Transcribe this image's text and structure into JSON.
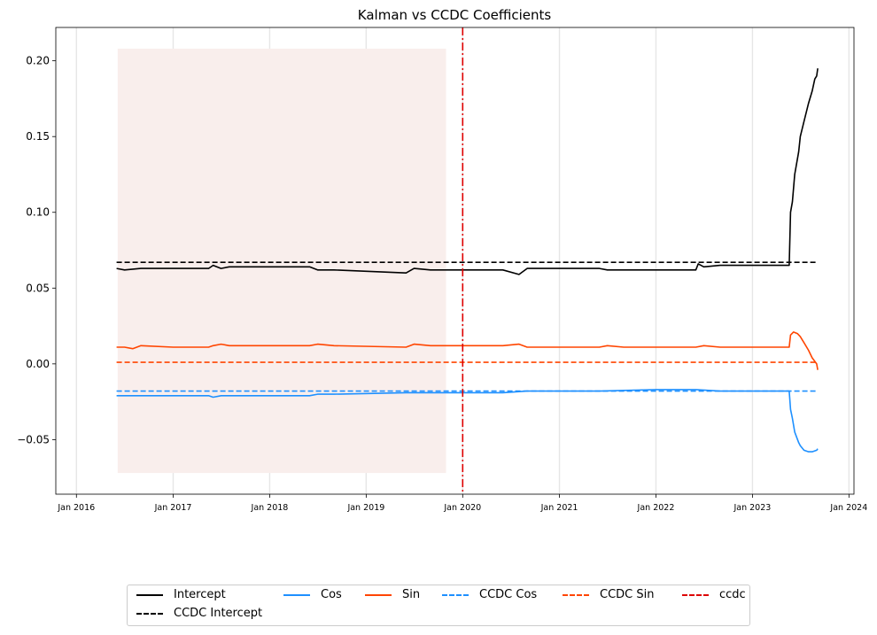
{
  "chart_data": {
    "type": "line",
    "title": "Kalman vs CCDC Coefficients",
    "xlabel": "",
    "ylabel": "",
    "x_ticks": [
      "Jan 2016",
      "Jan 2017",
      "Jan 2018",
      "Jan 2019",
      "Jan 2020",
      "Jan 2021",
      "Jan 2022",
      "Jan 2023",
      "Jan 2024"
    ],
    "y_ticks": [
      "−0.05",
      "0.00",
      "0.05",
      "0.10",
      "0.15",
      "0.20"
    ],
    "xlim": [
      "2015-10-15",
      "2024-01-20"
    ],
    "ylim": [
      -0.086,
      0.222
    ],
    "grid": "vertical",
    "legend_position": "bottom",
    "shaded_region": {
      "x": [
        "2016-06-05",
        "2019-10-30"
      ],
      "y": [
        -0.072,
        0.208
      ],
      "color": "#f9eeec"
    },
    "vertical_line": {
      "name": "ccdc",
      "x": "2020-01-01",
      "color": "#dd0000",
      "style": "dashdot"
    },
    "series": [
      {
        "name": "Intercept",
        "color": "#000000",
        "style": "solid",
        "x": [
          "2016-06-01",
          "2016-07-01",
          "2016-09-01",
          "2017-01-01",
          "2017-05-15",
          "2017-06-01",
          "2017-07-01",
          "2017-08-01",
          "2018-06-01",
          "2018-07-01",
          "2018-09-01",
          "2019-06-01",
          "2019-07-01",
          "2019-09-01",
          "2020-03-01",
          "2020-06-01",
          "2020-08-01",
          "2020-09-01",
          "2021-01-01",
          "2021-06-01",
          "2021-07-01",
          "2021-09-01",
          "2022-01-01",
          "2022-06-01",
          "2022-06-10",
          "2022-07-01",
          "2022-09-01",
          "2023-01-01",
          "2023-05-20",
          "2023-05-25",
          "2023-06-01",
          "2023-06-10",
          "2023-06-25",
          "2023-07-01",
          "2023-07-15",
          "2023-08-01",
          "2023-08-15",
          "2023-08-25",
          "2023-09-01",
          "2023-09-05"
        ],
        "values": [
          0.063,
          0.062,
          0.063,
          0.063,
          0.063,
          0.065,
          0.063,
          0.064,
          0.064,
          0.062,
          0.062,
          0.06,
          0.063,
          0.062,
          0.062,
          0.062,
          0.059,
          0.063,
          0.063,
          0.063,
          0.062,
          0.062,
          0.062,
          0.062,
          0.066,
          0.064,
          0.065,
          0.065,
          0.065,
          0.1,
          0.107,
          0.125,
          0.14,
          0.15,
          0.16,
          0.172,
          0.18,
          0.188,
          0.19,
          0.195
        ]
      },
      {
        "name": "CCDC Intercept",
        "color": "#000000",
        "style": "dashed",
        "x": [
          "2016-06-01",
          "2023-09-05"
        ],
        "values": [
          0.067,
          0.067
        ]
      },
      {
        "name": "Cos",
        "color": "#1e90ff",
        "style": "solid",
        "x": [
          "2016-06-01",
          "2016-07-01",
          "2016-09-01",
          "2017-01-01",
          "2017-05-15",
          "2017-06-01",
          "2017-07-01",
          "2017-08-01",
          "2018-06-01",
          "2018-07-01",
          "2018-09-01",
          "2019-06-01",
          "2019-07-01",
          "2019-09-01",
          "2020-03-01",
          "2020-06-01",
          "2020-09-01",
          "2021-01-01",
          "2021-06-01",
          "2022-01-01",
          "2022-06-01",
          "2022-09-01",
          "2023-01-01",
          "2023-05-20",
          "2023-05-25",
          "2023-06-01",
          "2023-06-10",
          "2023-06-25",
          "2023-07-01",
          "2023-07-15",
          "2023-08-01",
          "2023-08-15",
          "2023-09-01",
          "2023-09-05"
        ],
        "values": [
          -0.021,
          -0.021,
          -0.021,
          -0.021,
          -0.021,
          -0.022,
          -0.021,
          -0.021,
          -0.021,
          -0.02,
          -0.02,
          -0.019,
          -0.019,
          -0.019,
          -0.019,
          -0.019,
          -0.018,
          -0.018,
          -0.018,
          -0.017,
          -0.017,
          -0.018,
          -0.018,
          -0.018,
          -0.03,
          -0.036,
          -0.045,
          -0.052,
          -0.054,
          -0.057,
          -0.058,
          -0.058,
          -0.057,
          -0.056
        ]
      },
      {
        "name": "Sin",
        "color": "#ff4500",
        "style": "solid",
        "x": [
          "2016-06-01",
          "2016-07-01",
          "2016-08-01",
          "2016-09-01",
          "2017-01-01",
          "2017-05-15",
          "2017-06-01",
          "2017-07-01",
          "2017-08-01",
          "2018-06-01",
          "2018-07-01",
          "2018-09-01",
          "2019-06-01",
          "2019-07-01",
          "2019-09-01",
          "2020-03-01",
          "2020-06-01",
          "2020-08-01",
          "2020-09-01",
          "2021-01-01",
          "2021-06-01",
          "2021-07-01",
          "2021-09-01",
          "2022-01-01",
          "2022-06-01",
          "2022-07-01",
          "2022-09-01",
          "2023-01-01",
          "2023-05-20",
          "2023-05-25",
          "2023-06-05",
          "2023-06-20",
          "2023-07-01",
          "2023-07-15",
          "2023-08-01",
          "2023-08-15",
          "2023-09-01",
          "2023-09-05"
        ],
        "values": [
          0.011,
          0.011,
          0.01,
          0.012,
          0.011,
          0.011,
          0.012,
          0.013,
          0.012,
          0.012,
          0.013,
          0.012,
          0.011,
          0.013,
          0.012,
          0.012,
          0.012,
          0.013,
          0.011,
          0.011,
          0.011,
          0.012,
          0.011,
          0.011,
          0.011,
          0.012,
          0.011,
          0.011,
          0.011,
          0.019,
          0.021,
          0.02,
          0.018,
          0.014,
          0.009,
          0.004,
          0.0,
          -0.004
        ]
      },
      {
        "name": "CCDC Cos",
        "color": "#1e90ff",
        "style": "dashed",
        "x": [
          "2016-06-01",
          "2023-09-05"
        ],
        "values": [
          -0.018,
          -0.018
        ]
      },
      {
        "name": "CCDC Sin",
        "color": "#ff4500",
        "style": "dashed",
        "x": [
          "2016-06-01",
          "2023-09-05"
        ],
        "values": [
          0.001,
          0.001
        ]
      }
    ]
  },
  "legend": {
    "items": [
      {
        "label": "Intercept",
        "color": "#000000",
        "style": "solid"
      },
      {
        "label": "CCDC Intercept",
        "color": "#000000",
        "style": "dashed"
      },
      {
        "label": "Cos",
        "color": "#1e90ff",
        "style": "solid"
      },
      {
        "label": "Sin",
        "color": "#ff4500",
        "style": "solid"
      },
      {
        "label": "CCDC Cos",
        "color": "#1e90ff",
        "style": "dashed"
      },
      {
        "label": "CCDC Sin",
        "color": "#ff4500",
        "style": "dashed"
      },
      {
        "label": "ccdc",
        "color": "#dd0000",
        "style": "dashdot"
      }
    ]
  }
}
